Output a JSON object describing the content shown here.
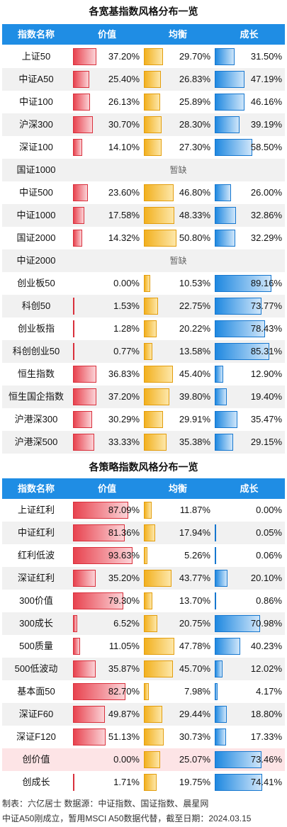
{
  "chart_data": [
    {
      "type": "table",
      "title": "各宽基指数风格分布一览",
      "columns": [
        "指数名称",
        "价值",
        "均衡",
        "成长"
      ],
      "rows": [
        {
          "name": "上证50",
          "value": 37.2,
          "balance": 29.7,
          "growth": 31.5,
          "value_label": "37.20%",
          "balance_label": "29.70%",
          "growth_label": "31.50%"
        },
        {
          "name": "中证A50",
          "value": 25.4,
          "balance": 26.83,
          "growth": 47.19,
          "value_label": "25.40%",
          "balance_label": "26.83%",
          "growth_label": "47.19%"
        },
        {
          "name": "中证100",
          "value": 26.13,
          "balance": 25.89,
          "growth": 46.16,
          "value_label": "26.13%",
          "balance_label": "25.89%",
          "growth_label": "46.16%"
        },
        {
          "name": "沪深300",
          "value": 30.7,
          "balance": 28.3,
          "growth": 39.19,
          "value_label": "30.70%",
          "balance_label": "28.30%",
          "growth_label": "39.19%"
        },
        {
          "name": "深证100",
          "value": 14.1,
          "balance": 27.3,
          "growth": 58.5,
          "value_label": "14.10%",
          "balance_label": "27.30%",
          "growth_label": "58.50%"
        },
        {
          "name": "国证1000",
          "missing": "暂缺"
        },
        {
          "name": "中证500",
          "value": 23.6,
          "balance": 46.8,
          "growth": 26.0,
          "value_label": "23.60%",
          "balance_label": "46.80%",
          "growth_label": "26.00%"
        },
        {
          "name": "中证1000",
          "value": 17.58,
          "balance": 48.33,
          "growth": 32.86,
          "value_label": "17.58%",
          "balance_label": "48.33%",
          "growth_label": "32.86%"
        },
        {
          "name": "国证2000",
          "value": 14.32,
          "balance": 50.8,
          "growth": 32.29,
          "value_label": "14.32%",
          "balance_label": "50.80%",
          "growth_label": "32.29%"
        },
        {
          "name": "中证2000",
          "missing": "暂缺"
        },
        {
          "name": "创业板50",
          "value": 0.0,
          "balance": 10.53,
          "growth": 89.16,
          "value_label": "0.00%",
          "balance_label": "10.53%",
          "growth_label": "89.16%"
        },
        {
          "name": "科创50",
          "value": 1.53,
          "balance": 22.75,
          "growth": 73.77,
          "value_label": "1.53%",
          "balance_label": "22.75%",
          "growth_label": "73.77%"
        },
        {
          "name": "创业板指",
          "value": 1.28,
          "balance": 20.22,
          "growth": 78.43,
          "value_label": "1.28%",
          "balance_label": "20.22%",
          "growth_label": "78.43%"
        },
        {
          "name": "科创创业50",
          "value": 0.77,
          "balance": 13.58,
          "growth": 85.31,
          "value_label": "0.77%",
          "balance_label": "13.58%",
          "growth_label": "85.31%"
        },
        {
          "name": "恒生指数",
          "value": 36.83,
          "balance": 45.4,
          "growth": 12.9,
          "value_label": "36.83%",
          "balance_label": "45.40%",
          "growth_label": "12.90%"
        },
        {
          "name": "恒生国企指数",
          "value": 37.2,
          "balance": 39.8,
          "growth": 19.4,
          "value_label": "37.20%",
          "balance_label": "39.80%",
          "growth_label": "19.40%"
        },
        {
          "name": "沪港深300",
          "value": 30.29,
          "balance": 29.91,
          "growth": 35.47,
          "value_label": "30.29%",
          "balance_label": "29.91%",
          "growth_label": "35.47%"
        },
        {
          "name": "沪港深500",
          "value": 33.33,
          "balance": 35.38,
          "growth": 29.15,
          "value_label": "33.33%",
          "balance_label": "35.38%",
          "growth_label": "29.15%"
        }
      ]
    },
    {
      "type": "table",
      "title": "各策略指数风格分布一览",
      "columns": [
        "指数名称",
        "价值",
        "均衡",
        "成长"
      ],
      "rows": [
        {
          "name": "上证红利",
          "value": 87.09,
          "balance": 11.87,
          "growth": 0.0,
          "value_label": "87.09%",
          "balance_label": "11.87%",
          "growth_label": "0.00%"
        },
        {
          "name": "中证红利",
          "value": 81.36,
          "balance": 17.94,
          "growth": 0.05,
          "value_label": "81.36%",
          "balance_label": "17.94%",
          "growth_label": "0.05%"
        },
        {
          "name": "红利低波",
          "value": 93.63,
          "balance": 5.26,
          "growth": 0.06,
          "value_label": "93.63%",
          "balance_label": "5.26%",
          "growth_label": "0.06%"
        },
        {
          "name": "深证红利",
          "value": 35.2,
          "balance": 43.77,
          "growth": 20.1,
          "value_label": "35.20%",
          "balance_label": "43.77%",
          "growth_label": "20.10%"
        },
        {
          "name": "300价值",
          "value": 79.3,
          "balance": 13.7,
          "growth": 0.86,
          "value_label": "79.30%",
          "balance_label": "13.70%",
          "growth_label": "0.86%"
        },
        {
          "name": "300成长",
          "value": 6.52,
          "balance": 20.75,
          "growth": 70.98,
          "value_label": "6.52%",
          "balance_label": "20.75%",
          "growth_label": "70.98%"
        },
        {
          "name": "500质量",
          "value": 11.05,
          "balance": 47.78,
          "growth": 40.23,
          "value_label": "11.05%",
          "balance_label": "47.78%",
          "growth_label": "40.23%"
        },
        {
          "name": "500低波动",
          "value": 35.87,
          "balance": 45.7,
          "growth": 12.02,
          "value_label": "35.87%",
          "balance_label": "45.70%",
          "growth_label": "12.02%"
        },
        {
          "name": "基本面50",
          "value": 82.7,
          "balance": 7.98,
          "growth": 4.17,
          "value_label": "82.70%",
          "balance_label": "7.98%",
          "growth_label": "4.17%"
        },
        {
          "name": "深证F60",
          "value": 49.87,
          "balance": 29.44,
          "growth": 18.8,
          "value_label": "49.87%",
          "balance_label": "29.44%",
          "growth_label": "18.80%"
        },
        {
          "name": "深证F120",
          "value": 51.13,
          "balance": 30.73,
          "growth": 17.33,
          "value_label": "51.13%",
          "balance_label": "30.73%",
          "growth_label": "17.33%"
        },
        {
          "name": "创价值",
          "value": 0.0,
          "balance": 25.07,
          "growth": 73.46,
          "value_label": "0.00%",
          "balance_label": "25.07%",
          "growth_label": "73.46%",
          "highlight": true
        },
        {
          "name": "创成长",
          "value": 1.71,
          "balance": 19.75,
          "growth": 74.41,
          "value_label": "1.71%",
          "balance_label": "19.75%",
          "growth_label": "74.41%"
        }
      ]
    }
  ],
  "footer": {
    "line1": "制表：六亿居士   数据源：中证指数、国证指数、晨星网",
    "line2": "中证A50刚成立，暂用MSCI A50数据代替，截至日期：2024.03.15"
  },
  "colors": {
    "header_bg": "#1f8de4",
    "value_bar": "#e8434f",
    "balance_bar": "#f2b01e",
    "growth_bar": "#1f88e0",
    "highlight_row": "#fde4e6"
  }
}
